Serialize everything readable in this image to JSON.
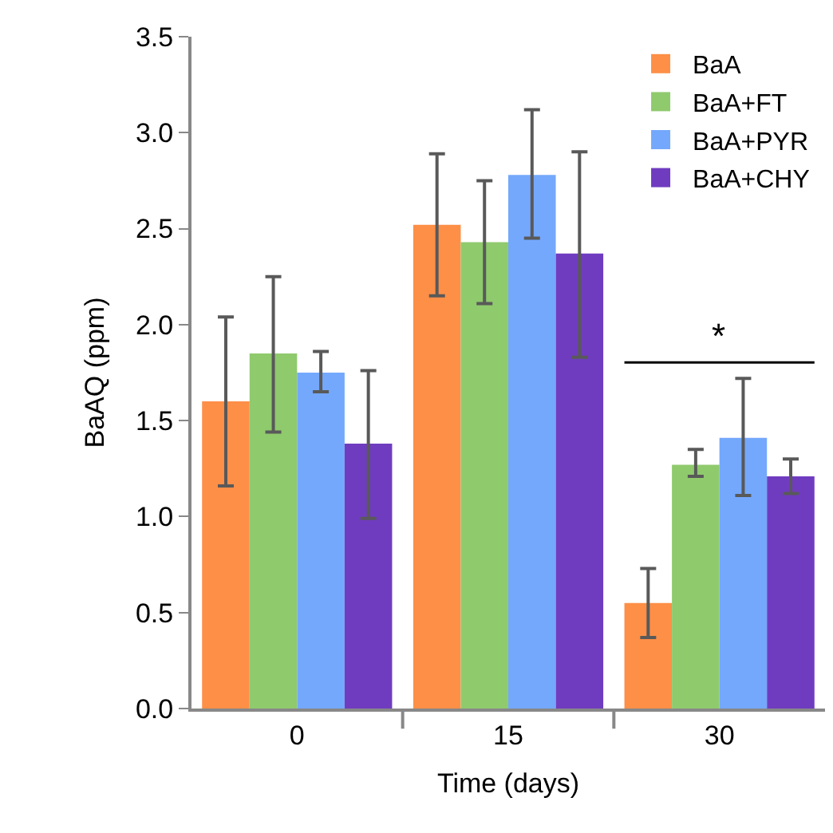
{
  "chart_data": {
    "type": "bar",
    "xlabel": "Time (days)",
    "ylabel": "BaAQ (ppm)",
    "categories": [
      "0",
      "15",
      "30"
    ],
    "series": [
      {
        "name": "BaA",
        "color": "#fd8f47",
        "values": [
          1.6,
          2.52,
          0.55
        ],
        "errors": [
          [
            1.16,
            2.04
          ],
          [
            2.15,
            2.89
          ],
          [
            0.37,
            0.73
          ]
        ]
      },
      {
        "name": "BaA+FT",
        "color": "#8fca6d",
        "values": [
          1.85,
          2.43,
          1.27
        ],
        "errors": [
          [
            1.44,
            2.25
          ],
          [
            2.11,
            2.75
          ],
          [
            1.21,
            1.35
          ]
        ]
      },
      {
        "name": "BaA+PYR",
        "color": "#74a8fc",
        "values": [
          1.75,
          2.78,
          1.41
        ],
        "errors": [
          [
            1.65,
            1.86
          ],
          [
            2.45,
            3.12
          ],
          [
            1.11,
            1.72
          ]
        ]
      },
      {
        "name": "BaA+CHY",
        "color": "#6f3cc0",
        "values": [
          1.38,
          2.37,
          1.21
        ],
        "errors": [
          [
            0.99,
            1.76
          ],
          [
            1.83,
            2.9
          ],
          [
            1.12,
            1.3
          ]
        ]
      }
    ],
    "ylim": [
      0,
      3.5
    ],
    "yticks": [
      {
        "value": 0,
        "label": "0.0"
      },
      0.5,
      {
        "value": 1,
        "label": "1.0"
      },
      1.5,
      {
        "value": 2,
        "label": "2.0"
      },
      2.5,
      {
        "value": 3,
        "label": "3.0"
      },
      3.5
    ],
    "annotations": [
      "*"
    ],
    "legend": "top right"
  }
}
